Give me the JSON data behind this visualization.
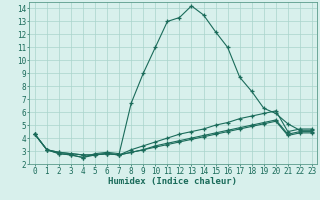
{
  "xlabel": "Humidex (Indice chaleur)",
  "bg_color": "#d8f0ec",
  "line_color": "#1a6b5a",
  "grid_color": "#aad4cc",
  "spine_color": "#5a9a8a",
  "xlim": [
    -0.5,
    23.4
  ],
  "ylim": [
    2,
    14.5
  ],
  "xticks": [
    0,
    1,
    2,
    3,
    4,
    5,
    6,
    7,
    8,
    9,
    10,
    11,
    12,
    13,
    14,
    15,
    16,
    17,
    18,
    19,
    20,
    21,
    22,
    23
  ],
  "yticks": [
    2,
    3,
    4,
    5,
    6,
    7,
    8,
    9,
    10,
    11,
    12,
    13,
    14
  ],
  "line1_x": [
    0,
    1,
    2,
    3,
    4,
    5,
    6,
    7,
    8,
    9,
    10,
    11,
    12,
    13,
    14,
    15,
    16,
    17,
    18,
    19,
    20,
    21,
    22,
    23
  ],
  "line1_y": [
    4.3,
    3.1,
    2.8,
    2.7,
    2.5,
    2.8,
    2.9,
    2.8,
    6.7,
    9.0,
    11.0,
    13.0,
    13.3,
    14.2,
    13.5,
    12.2,
    11.0,
    8.7,
    7.6,
    6.3,
    5.9,
    5.1,
    4.6,
    4.6
  ],
  "line2_x": [
    0,
    1,
    2,
    3,
    4,
    5,
    6,
    7,
    8,
    9,
    10,
    11,
    12,
    13,
    14,
    15,
    16,
    17,
    18,
    19,
    20,
    21,
    22,
    23
  ],
  "line2_y": [
    4.3,
    3.1,
    2.9,
    2.8,
    2.7,
    2.7,
    2.8,
    2.7,
    3.1,
    3.4,
    3.7,
    4.0,
    4.3,
    4.5,
    4.7,
    5.0,
    5.2,
    5.5,
    5.7,
    5.9,
    6.1,
    4.5,
    4.7,
    4.7
  ],
  "line3_x": [
    0,
    1,
    2,
    3,
    4,
    5,
    6,
    7,
    8,
    9,
    10,
    11,
    12,
    13,
    14,
    15,
    16,
    17,
    18,
    19,
    20,
    21,
    22,
    23
  ],
  "line3_y": [
    4.3,
    3.1,
    2.9,
    2.8,
    2.7,
    2.7,
    2.8,
    2.7,
    2.9,
    3.1,
    3.4,
    3.6,
    3.8,
    4.0,
    4.2,
    4.4,
    4.6,
    4.8,
    5.0,
    5.2,
    5.4,
    4.3,
    4.5,
    4.5
  ],
  "line4_x": [
    0,
    1,
    2,
    3,
    4,
    5,
    6,
    7,
    8,
    9,
    10,
    11,
    12,
    13,
    14,
    15,
    16,
    17,
    18,
    19,
    20,
    21,
    22,
    23
  ],
  "line4_y": [
    4.3,
    3.1,
    2.8,
    2.7,
    2.5,
    2.7,
    2.8,
    2.7,
    2.9,
    3.1,
    3.3,
    3.5,
    3.7,
    3.9,
    4.1,
    4.3,
    4.5,
    4.7,
    4.9,
    5.1,
    5.3,
    4.2,
    4.4,
    4.4
  ],
  "tick_fontsize": 5.5,
  "label_fontsize": 6.5
}
